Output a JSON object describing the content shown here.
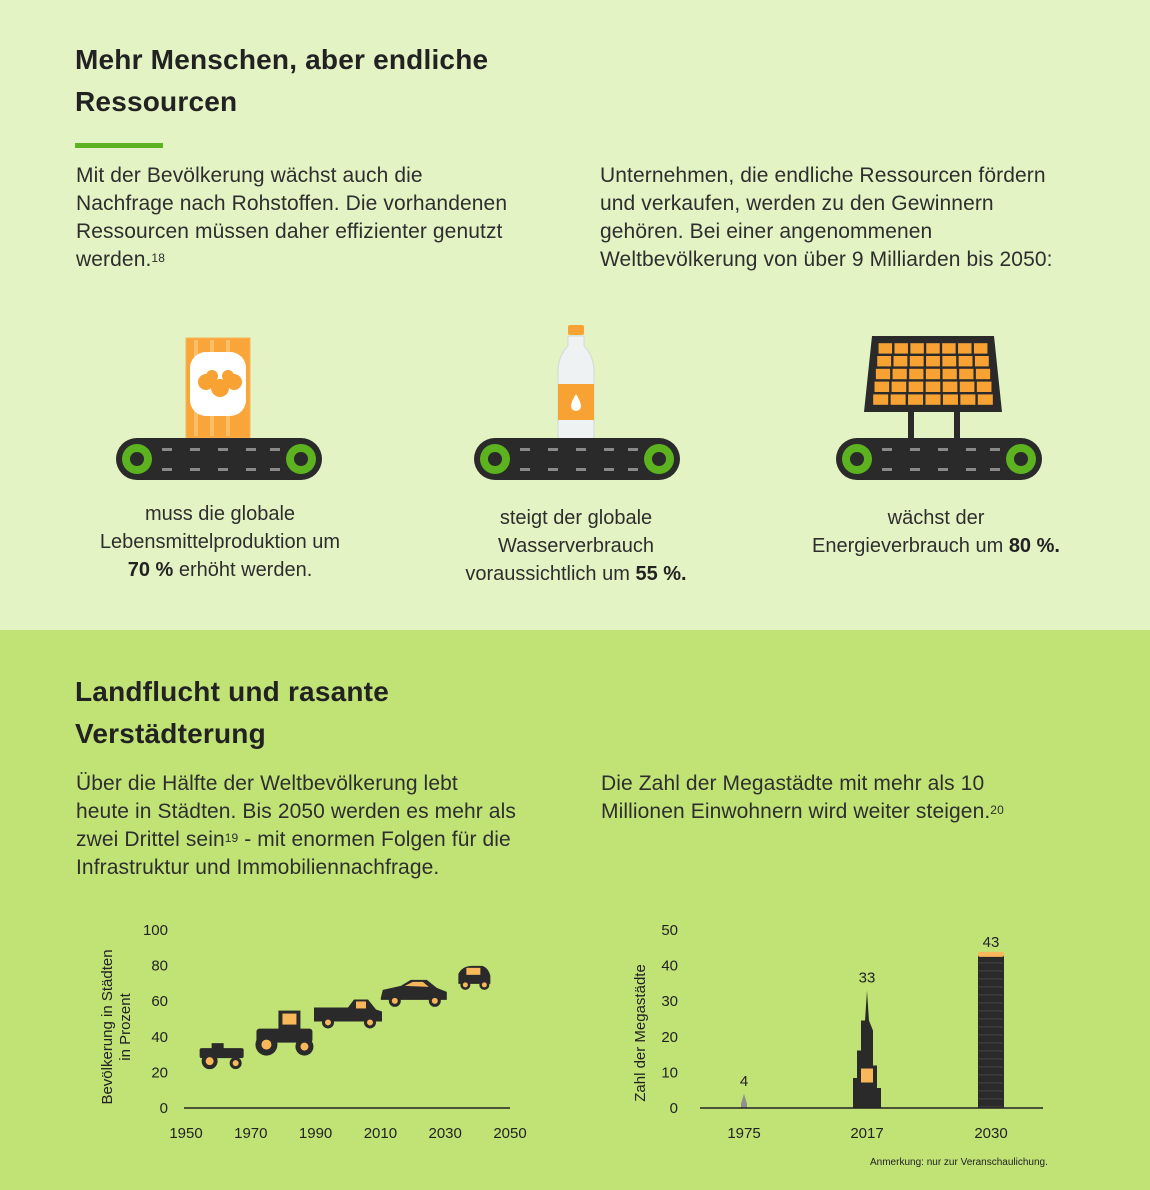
{
  "section1": {
    "title_line1": "Mehr Menschen, aber endliche",
    "title_line2": "Ressourcen",
    "left_lines": [
      "Mit der Bevölkerung wächst auch die",
      "Nachfrage nach Rohstoffen. Die vorhandenen",
      "Ressourcen müssen daher effizienter genutzt",
      "werden."
    ],
    "left_footnote": "18",
    "right_lines": [
      "Unternehmen, die endliche Ressourcen fördern",
      "und verkaufen, werden zu den Gewinnern",
      "gehören. Bei einer angenommenen",
      "Weltbevölkerung von über 9 Milliarden bis 2050:"
    ],
    "items": [
      {
        "icon": "food-can-icon",
        "line1": "muss die globale",
        "line2": "Lebensmittelproduktion um",
        "value": "70 %",
        "line3_after": " erhöht werden."
      },
      {
        "icon": "water-bottle-icon",
        "line1": "steigt der globale",
        "line2": "Wasserverbrauch",
        "line3_before": "voraussichtlich um ",
        "value": "55 %."
      },
      {
        "icon": "solar-panel-icon",
        "line1": "wächst der",
        "line2_before": "Energieverbrauch um ",
        "value": "80 %."
      }
    ]
  },
  "section2": {
    "title_line1": "Landflucht und rasante",
    "title_line2": "Verstädterung",
    "left_lines": [
      "Über die Hälfte der Weltbevölkerung lebt",
      "heute in Städten. Bis 2050 werden es mehr als"
    ],
    "left_line3_before": "zwei Drittel sein",
    "left_footnote": "19",
    "left_line3_after": " - mit enormen Folgen für die",
    "left_line4": "Infrastruktur und Immobiliennachfrage.",
    "right_lines": [
      "Die Zahl der Megastädte mit mehr als 10"
    ],
    "right_line2": "Millionen Einwohnern wird weiter steigen.",
    "right_footnote": "20",
    "note": "Anmerkung: nur zur Veranschaulichung."
  },
  "chart_data": [
    {
      "type": "scatter",
      "ylabel": "Bevölkerung in Städten in Prozent",
      "ylabel_line1": "Bevölkerung in Städten",
      "ylabel_line2": "in Prozent",
      "xlim": [
        1950,
        2050
      ],
      "ylim": [
        0,
        100
      ],
      "x_ticks": [
        "1950",
        "1970",
        "1990",
        "2010",
        "2030",
        "2050"
      ],
      "y_ticks": [
        "0",
        "20",
        "40",
        "60",
        "80",
        "100"
      ],
      "points": [
        {
          "x": 1961,
          "y": 28,
          "icon": "tractor-small-icon"
        },
        {
          "x": 1981,
          "y": 39,
          "icon": "tractor-large-icon"
        },
        {
          "x": 2000,
          "y": 52,
          "icon": "pickup-truck-icon"
        },
        {
          "x": 2020,
          "y": 63,
          "icon": "sports-car-icon"
        },
        {
          "x": 2039,
          "y": 72,
          "icon": "compact-car-icon"
        }
      ]
    },
    {
      "type": "bar",
      "ylabel": "Zahl der Megastädte",
      "ylim": [
        0,
        50
      ],
      "y_ticks": [
        "0",
        "10",
        "20",
        "30",
        "40",
        "50"
      ],
      "categories": [
        "1975",
        "2017",
        "2030"
      ],
      "values": [
        4,
        33,
        43
      ],
      "labels": [
        "4",
        "33",
        "43"
      ],
      "accent": "#f7b75a"
    }
  ],
  "colors": {
    "accent_green": "#5cb21f",
    "orange": "#f7a233",
    "dark": "#2a2a2a"
  }
}
